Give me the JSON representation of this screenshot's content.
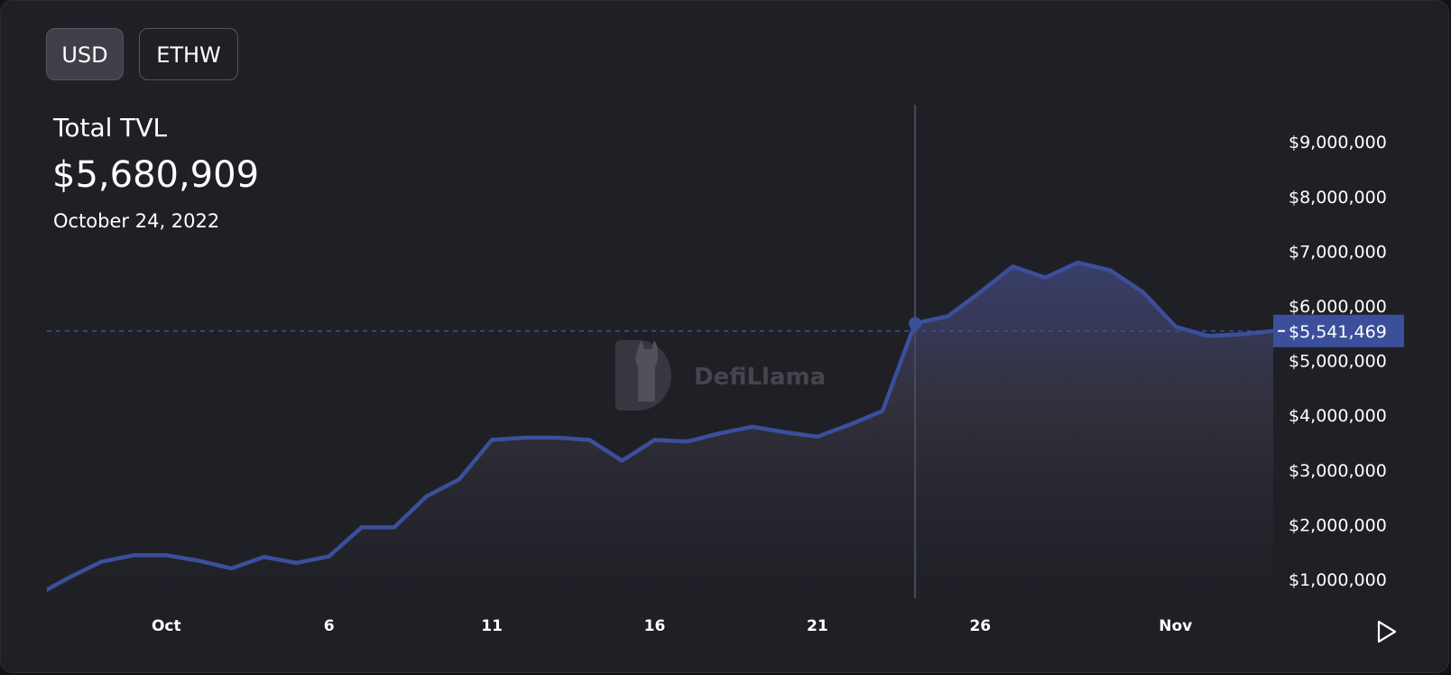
{
  "toggles": {
    "usd_label": "USD",
    "ethw_label": "ETHW",
    "active": "USD"
  },
  "header": {
    "title": "Total TVL",
    "value": "$5,680,909",
    "date": "October 24, 2022"
  },
  "watermark": "DefiLlama",
  "colors": {
    "line": "#3b4f9b",
    "background": "#1f2026",
    "crosshair": "#4a4b55",
    "price_label": "#3b4f9b"
  },
  "icons": {
    "play": "play-icon"
  },
  "chart_data": {
    "type": "area",
    "title": "Total TVL",
    "xlabel": "",
    "ylabel": "",
    "x": [
      "2022-09-27",
      "2022-09-28",
      "2022-09-29",
      "2022-09-30",
      "2022-10-01",
      "2022-10-02",
      "2022-10-03",
      "2022-10-04",
      "2022-10-05",
      "2022-10-06",
      "2022-10-07",
      "2022-10-08",
      "2022-10-09",
      "2022-10-10",
      "2022-10-11",
      "2022-10-12",
      "2022-10-13",
      "2022-10-14",
      "2022-10-15",
      "2022-10-16",
      "2022-10-17",
      "2022-10-18",
      "2022-10-19",
      "2022-10-20",
      "2022-10-21",
      "2022-10-22",
      "2022-10-23",
      "2022-10-24",
      "2022-10-25",
      "2022-10-26",
      "2022-10-27",
      "2022-10-28",
      "2022-10-29",
      "2022-10-30",
      "2022-10-31",
      "2022-11-01",
      "2022-11-02",
      "2022-11-03",
      "2022-11-04"
    ],
    "series": [
      {
        "values": [
          700000,
          1030000,
          1320000,
          1440000,
          1440000,
          1340000,
          1200000,
          1410000,
          1300000,
          1420000,
          1950000,
          1950000,
          2520000,
          2830000,
          3550000,
          3590000,
          3590000,
          3550000,
          3170000,
          3550000,
          3520000,
          3670000,
          3790000,
          3690000,
          3610000,
          3830000,
          4080000,
          5680909,
          5810000,
          6250000,
          6720000,
          6520000,
          6790000,
          6650000,
          6250000,
          5620000,
          5450000,
          5480000,
          5541469
        ]
      }
    ],
    "xlim": [
      "2022-09-27T08:00",
      "2022-11-04T00:00"
    ],
    "ylim": [
      700000,
      9500000
    ],
    "y_ticks": [
      "$1,000,000",
      "$2,000,000",
      "$3,000,000",
      "$4,000,000",
      "$5,000,000",
      "$6,000,000",
      "$7,000,000",
      "$8,000,000",
      "$9,000,000"
    ],
    "y_tick_values": [
      1000000,
      2000000,
      3000000,
      4000000,
      5000000,
      6000000,
      7000000,
      8000000,
      9000000
    ],
    "x_ticks": [
      "Oct",
      "6",
      "11",
      "16",
      "21",
      "26",
      "Nov"
    ],
    "x_tick_values": [
      "2022-10-01",
      "2022-10-06",
      "2022-10-11",
      "2022-10-16",
      "2022-10-21",
      "2022-10-26",
      "2022-11-01"
    ],
    "crosshair_date": "2022-10-24",
    "last_value_label": "$5,541,469",
    "last_value": 5541469,
    "grid": false,
    "legend": "none"
  }
}
